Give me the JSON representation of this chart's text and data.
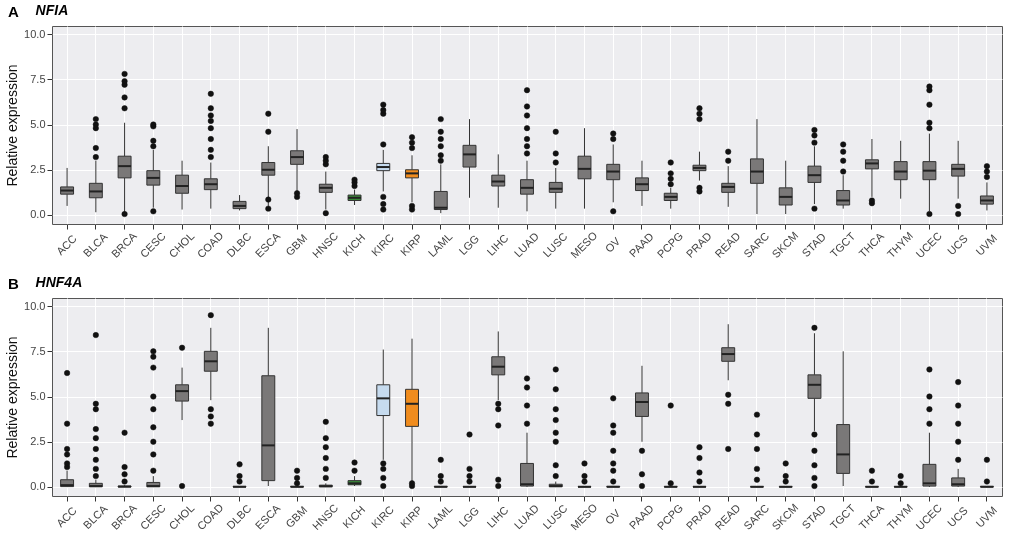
{
  "chart_data": [
    {
      "type": "box",
      "title": "NFIA",
      "annotations": [
        "A"
      ],
      "ylabel": "Relative expression",
      "grid": true,
      "categories": [
        "ACC",
        "BLCA",
        "BRCA",
        "CESC",
        "CHOL",
        "COAD",
        "DLBC",
        "ESCA",
        "GBM",
        "HNSC",
        "KICH",
        "KIRC",
        "KIRP",
        "LAML",
        "LGG",
        "LIHC",
        "LUAD",
        "LUSC",
        "MESO",
        "OV",
        "PAAD",
        "PCPG",
        "PRAD",
        "READ",
        "SARC",
        "SKCM",
        "STAD",
        "TGCT",
        "THCA",
        "THYM",
        "UCEC",
        "UCS",
        "UVM"
      ],
      "colors": [
        "#7a7878",
        "#7a7878",
        "#7a7878",
        "#7a7878",
        "#7a7878",
        "#7a7878",
        "#7a7878",
        "#7a7878",
        "#7a7878",
        "#7a7878",
        "#3a8a3a",
        "#c6dbef",
        "#f08c1e",
        "#7a7878",
        "#7a7878",
        "#7a7878",
        "#7a7878",
        "#7a7878",
        "#7a7878",
        "#7a7878",
        "#7a7878",
        "#7a7878",
        "#7a7878",
        "#7a7878",
        "#7a7878",
        "#7a7878",
        "#7a7878",
        "#7a7878",
        "#7a7878",
        "#7a7878",
        "#7a7878",
        "#7a7878",
        "#7a7878"
      ],
      "ylim": [
        -0.5,
        10.45
      ],
      "yticks": [
        {
          "value": 0,
          "label": "0.0"
        },
        {
          "value": 2.5,
          "label": "2.5"
        },
        {
          "value": 5,
          "label": "5.0"
        },
        {
          "value": 7.5,
          "label": "7.5"
        },
        {
          "value": 10,
          "label": "10.0"
        }
      ],
      "boxes": [
        {
          "low": 0.5,
          "q1": 1.15,
          "median": 1.35,
          "q3": 1.55,
          "high": 2.6
        },
        {
          "low": 0.15,
          "q1": 0.95,
          "median": 1.3,
          "q3": 1.75,
          "high": 3.0,
          "outliers": [
            3.2,
            3.7,
            4.8,
            5.0,
            5.3
          ]
        },
        {
          "low": 0.1,
          "q1": 2.05,
          "median": 2.7,
          "q3": 3.25,
          "high": 5.1,
          "outliers": [
            0.05,
            5.9,
            6.5,
            7.2,
            7.4,
            7.8
          ]
        },
        {
          "low": 0.4,
          "q1": 1.65,
          "median": 2.05,
          "q3": 2.45,
          "high": 3.6,
          "outliers": [
            0.2,
            3.8,
            4.1,
            4.9,
            5.0
          ]
        },
        {
          "low": 0.3,
          "q1": 1.2,
          "median": 1.6,
          "q3": 2.2,
          "high": 3.0
        },
        {
          "low": 0.35,
          "q1": 1.4,
          "median": 1.7,
          "q3": 2.0,
          "high": 2.9,
          "outliers": [
            3.2,
            3.6,
            4.2,
            4.8,
            5.2,
            5.5,
            5.9,
            6.7
          ]
        },
        {
          "low": 0.25,
          "q1": 0.35,
          "median": 0.5,
          "q3": 0.75,
          "high": 1.1
        },
        {
          "low": 0.5,
          "q1": 2.2,
          "median": 2.5,
          "q3": 2.9,
          "high": 3.8,
          "outliers": [
            0.35,
            0.85,
            4.6,
            5.6
          ]
        },
        {
          "low": 1.3,
          "q1": 2.8,
          "median": 3.2,
          "q3": 3.55,
          "high": 4.75,
          "outliers": [
            1.0,
            1.2
          ]
        },
        {
          "low": 0.3,
          "q1": 1.25,
          "median": 1.5,
          "q3": 1.7,
          "high": 2.4,
          "outliers": [
            0.1,
            2.8,
            3.0,
            3.2
          ]
        },
        {
          "low": 0.55,
          "q1": 0.8,
          "median": 0.95,
          "q3": 1.1,
          "high": 1.4,
          "outliers": [
            1.6,
            1.8,
            1.95
          ]
        },
        {
          "low": 1.3,
          "q1": 2.45,
          "median": 2.65,
          "q3": 2.85,
          "high": 3.6,
          "outliers": [
            0.3,
            0.6,
            1.0,
            3.9,
            5.6,
            5.8,
            6.1
          ]
        },
        {
          "low": 0.7,
          "q1": 2.05,
          "median": 2.3,
          "q3": 2.5,
          "high": 3.3,
          "outliers": [
            0.3,
            0.5,
            3.7,
            4.0,
            4.3
          ]
        },
        {
          "low": 0.1,
          "q1": 0.3,
          "median": 0.4,
          "q3": 1.3,
          "high": 2.8,
          "outliers": [
            3.0,
            3.3,
            3.8,
            4.2,
            4.6,
            5.3
          ]
        },
        {
          "low": 0.95,
          "q1": 2.65,
          "median": 3.35,
          "q3": 3.85,
          "high": 5.3
        },
        {
          "low": 0.4,
          "q1": 1.6,
          "median": 1.85,
          "q3": 2.2,
          "high": 3.35
        },
        {
          "low": 0.2,
          "q1": 1.15,
          "median": 1.5,
          "q3": 1.95,
          "high": 3.0,
          "outliers": [
            3.4,
            3.8,
            4.2,
            4.8,
            5.5,
            6.0,
            6.9
          ]
        },
        {
          "low": 0.35,
          "q1": 1.25,
          "median": 1.45,
          "q3": 1.8,
          "high": 2.6,
          "outliers": [
            2.9,
            3.4,
            4.6
          ]
        },
        {
          "low": 0.35,
          "q1": 2.0,
          "median": 2.55,
          "q3": 3.25,
          "high": 4.8
        },
        {
          "low": 0.7,
          "q1": 1.95,
          "median": 2.4,
          "q3": 2.8,
          "high": 3.9,
          "outliers": [
            0.2,
            4.2,
            4.5
          ]
        },
        {
          "low": 0.5,
          "q1": 1.35,
          "median": 1.7,
          "q3": 2.05,
          "high": 3.0
        },
        {
          "low": 0.35,
          "q1": 0.8,
          "median": 1.0,
          "q3": 1.2,
          "high": 1.5,
          "outliers": [
            1.7,
            2.0,
            2.3,
            2.9
          ]
        },
        {
          "low": 1.9,
          "q1": 2.45,
          "median": 2.6,
          "q3": 2.75,
          "high": 3.5,
          "outliers": [
            1.3,
            1.5,
            5.3,
            5.6,
            5.9
          ]
        },
        {
          "low": 0.45,
          "q1": 1.25,
          "median": 1.55,
          "q3": 1.75,
          "high": 2.7,
          "outliers": [
            3.0,
            3.5
          ]
        },
        {
          "low": 0.05,
          "q1": 1.75,
          "median": 2.4,
          "q3": 3.1,
          "high": 5.3
        },
        {
          "low": 0.05,
          "q1": 0.55,
          "median": 1.0,
          "q3": 1.5,
          "high": 3.0
        },
        {
          "low": 0.6,
          "q1": 1.8,
          "median": 2.2,
          "q3": 2.7,
          "high": 3.8,
          "outliers": [
            0.35,
            4.0,
            4.4,
            4.7
          ]
        },
        {
          "low": 0.35,
          "q1": 0.55,
          "median": 0.8,
          "q3": 1.35,
          "high": 2.2,
          "outliers": [
            2.4,
            3.0,
            3.5,
            3.9
          ]
        },
        {
          "low": 1.0,
          "q1": 2.55,
          "median": 2.85,
          "q3": 3.05,
          "high": 4.2,
          "outliers": [
            0.65,
            0.8
          ]
        },
        {
          "low": 0.9,
          "q1": 1.95,
          "median": 2.4,
          "q3": 2.95,
          "high": 4.1
        },
        {
          "low": 0.2,
          "q1": 1.95,
          "median": 2.45,
          "q3": 2.95,
          "high": 4.5,
          "outliers": [
            0.05,
            4.8,
            5.1,
            6.1,
            6.9,
            7.1
          ]
        },
        {
          "low": 0.9,
          "q1": 2.15,
          "median": 2.55,
          "q3": 2.8,
          "high": 4.1,
          "outliers": [
            0.05,
            0.5
          ]
        },
        {
          "low": 0.25,
          "q1": 0.6,
          "median": 0.8,
          "q3": 1.05,
          "high": 1.8,
          "outliers": [
            2.1,
            2.4,
            2.7
          ]
        }
      ]
    },
    {
      "type": "box",
      "title": "HNF4A",
      "annotations": [
        "B"
      ],
      "ylabel": "Relative expression",
      "grid": true,
      "categories": [
        "ACC",
        "BLCA",
        "BRCA",
        "CESC",
        "CHOL",
        "COAD",
        "DLBC",
        "ESCA",
        "GBM",
        "HNSC",
        "KICH",
        "KIRC",
        "KIRP",
        "LAML",
        "LGG",
        "LIHC",
        "LUAD",
        "LUSC",
        "MESO",
        "OV",
        "PAAD",
        "PCPG",
        "PRAD",
        "READ",
        "SARC",
        "SKCM",
        "STAD",
        "TGCT",
        "THCA",
        "THYM",
        "UCEC",
        "UCS",
        "UVM"
      ],
      "colors": [
        "#7a7878",
        "#7a7878",
        "#7a7878",
        "#7a7878",
        "#7a7878",
        "#7a7878",
        "#7a7878",
        "#7a7878",
        "#7a7878",
        "#7a7878",
        "#3a8a3a",
        "#c6dbef",
        "#f08c1e",
        "#7a7878",
        "#7a7878",
        "#7a7878",
        "#7a7878",
        "#7a7878",
        "#7a7878",
        "#7a7878",
        "#7a7878",
        "#7a7878",
        "#7a7878",
        "#7a7878",
        "#7a7878",
        "#7a7878",
        "#7a7878",
        "#7a7878",
        "#7a7878",
        "#7a7878",
        "#7a7878",
        "#7a7878",
        "#7a7878"
      ],
      "ylim": [
        -0.5,
        10.45
      ],
      "yticks": [
        {
          "value": 0,
          "label": "0.0"
        },
        {
          "value": 2.5,
          "label": "2.5"
        },
        {
          "value": 5,
          "label": "5.0"
        },
        {
          "value": 7.5,
          "label": "7.5"
        },
        {
          "value": 10,
          "label": "10.0"
        }
      ],
      "boxes": [
        {
          "low": 0,
          "q1": 0.02,
          "median": 0.1,
          "q3": 0.4,
          "high": 0.9,
          "outliers": [
            1.1,
            1.3,
            1.8,
            2.1,
            3.5,
            6.3
          ]
        },
        {
          "low": 0,
          "q1": 0.01,
          "median": 0.05,
          "q3": 0.2,
          "high": 0.4,
          "outliers": [
            0.6,
            1.0,
            1.5,
            2.1,
            2.7,
            3.2,
            4.3,
            4.6,
            8.4
          ]
        },
        {
          "low": 0,
          "q1": 0,
          "median": 0.02,
          "q3": 0.05,
          "high": 0.1,
          "outliers": [
            0.3,
            0.7,
            1.1,
            3.0
          ]
        },
        {
          "low": 0,
          "q1": 0.01,
          "median": 0.05,
          "q3": 0.25,
          "high": 0.6,
          "outliers": [
            0.9,
            1.8,
            2.5,
            3.3,
            4.3,
            5.0,
            6.6,
            7.2,
            7.5
          ]
        },
        {
          "low": 3.7,
          "q1": 4.75,
          "median": 5.3,
          "q3": 5.65,
          "high": 6.6,
          "outliers": [
            0.05,
            7.7
          ]
        },
        {
          "low": 4.8,
          "q1": 6.4,
          "median": 6.95,
          "q3": 7.5,
          "high": 8.8,
          "outliers": [
            3.5,
            3.9,
            4.3,
            9.5
          ]
        },
        {
          "low": 0,
          "q1": 0,
          "median": 0.01,
          "q3": 0.03,
          "high": 0.05,
          "outliers": [
            0.3,
            0.6,
            1.25
          ]
        },
        {
          "low": 0.05,
          "q1": 0.35,
          "median": 2.3,
          "q3": 6.15,
          "high": 8.8
        },
        {
          "low": 0,
          "q1": 0,
          "median": 0.01,
          "q3": 0.03,
          "high": 0.06,
          "outliers": [
            0.2,
            0.5,
            0.9
          ]
        },
        {
          "low": 0,
          "q1": 0.01,
          "median": 0.04,
          "q3": 0.1,
          "high": 0.2,
          "outliers": [
            0.5,
            1.0,
            1.6,
            2.2,
            2.7,
            3.6
          ]
        },
        {
          "low": 0.05,
          "q1": 0.12,
          "median": 0.2,
          "q3": 0.35,
          "high": 0.6,
          "outliers": [
            0.9,
            1.35
          ]
        },
        {
          "low": 1.5,
          "q1": 3.95,
          "median": 4.9,
          "q3": 5.65,
          "high": 7.6,
          "outliers": [
            0.05,
            0.5,
            1.0,
            1.3
          ]
        },
        {
          "low": 0.3,
          "q1": 3.35,
          "median": 4.6,
          "q3": 5.4,
          "high": 8.2,
          "outliers": [
            0.05,
            0.2
          ]
        },
        {
          "low": 0,
          "q1": 0,
          "median": 0.01,
          "q3": 0.03,
          "high": 0.05,
          "outliers": [
            0.3,
            0.6,
            1.5
          ]
        },
        {
          "low": 0,
          "q1": 0,
          "median": 0.01,
          "q3": 0.02,
          "high": 0.04,
          "outliers": [
            0.3,
            0.6,
            1.0,
            2.9
          ]
        },
        {
          "low": 4.8,
          "q1": 6.2,
          "median": 6.65,
          "q3": 7.2,
          "high": 8.6,
          "outliers": [
            0.05,
            0.4,
            3.4,
            4.3,
            4.6
          ]
        },
        {
          "low": 0,
          "q1": 0.05,
          "median": 0.15,
          "q3": 1.3,
          "high": 3.0,
          "outliers": [
            3.5,
            4.5,
            5.5,
            6.0
          ]
        },
        {
          "low": 0,
          "q1": 0.01,
          "median": 0.05,
          "q3": 0.15,
          "high": 0.3,
          "outliers": [
            0.6,
            1.2,
            2.5,
            3.0,
            3.7,
            4.3,
            5.4,
            6.5
          ]
        },
        {
          "low": 0,
          "q1": 0,
          "median": 0.01,
          "q3": 0.02,
          "high": 0.04,
          "outliers": [
            0.3,
            0.6,
            1.3
          ]
        },
        {
          "low": 0,
          "q1": 0,
          "median": 0.01,
          "q3": 0.03,
          "high": 0.06,
          "outliers": [
            0.3,
            0.9,
            1.3,
            2.0,
            3.0,
            3.4,
            4.9
          ]
        },
        {
          "low": 2.5,
          "q1": 3.9,
          "median": 4.7,
          "q3": 5.2,
          "high": 6.7,
          "outliers": [
            0.05,
            0.7,
            2.0
          ]
        },
        {
          "low": 0,
          "q1": 0,
          "median": 0.01,
          "q3": 0.02,
          "high": 0.04,
          "outliers": [
            0.2,
            4.5
          ]
        },
        {
          "low": 0,
          "q1": 0,
          "median": 0.01,
          "q3": 0.02,
          "high": 0.04,
          "outliers": [
            0.3,
            0.8,
            1.6,
            2.2
          ]
        },
        {
          "low": 5.9,
          "q1": 6.95,
          "median": 7.35,
          "q3": 7.7,
          "high": 9.0,
          "outliers": [
            2.1,
            4.6,
            5.1
          ]
        },
        {
          "low": 0,
          "q1": 0,
          "median": 0.01,
          "q3": 0.02,
          "high": 0.04,
          "outliers": [
            0.4,
            1.0,
            2.1,
            2.9,
            4.0
          ]
        },
        {
          "low": 0,
          "q1": 0,
          "median": 0.01,
          "q3": 0.02,
          "high": 0.04,
          "outliers": [
            0.3,
            0.6,
            1.3
          ]
        },
        {
          "low": 3.1,
          "q1": 4.9,
          "median": 5.65,
          "q3": 6.2,
          "high": 8.5,
          "outliers": [
            0.05,
            0.5,
            1.2,
            2.0,
            2.9,
            8.8
          ]
        },
        {
          "low": 0.05,
          "q1": 0.75,
          "median": 1.8,
          "q3": 3.45,
          "high": 7.5
        },
        {
          "low": 0,
          "q1": 0,
          "median": 0.01,
          "q3": 0.02,
          "high": 0.04,
          "outliers": [
            0.3,
            0.9
          ]
        },
        {
          "low": 0,
          "q1": 0,
          "median": 0.01,
          "q3": 0.02,
          "high": 0.04,
          "outliers": [
            0.2,
            0.6
          ]
        },
        {
          "low": 0,
          "q1": 0.05,
          "median": 0.2,
          "q3": 1.25,
          "high": 3.0,
          "outliers": [
            3.5,
            4.3,
            5.0,
            6.5
          ]
        },
        {
          "low": 0,
          "q1": 0.05,
          "median": 0.15,
          "q3": 0.5,
          "high": 1.0,
          "outliers": [
            1.5,
            2.5,
            3.5,
            4.5,
            5.8
          ]
        },
        {
          "low": 0,
          "q1": 0,
          "median": 0.01,
          "q3": 0.03,
          "high": 0.05,
          "outliers": [
            0.3,
            1.5
          ]
        }
      ]
    }
  ]
}
